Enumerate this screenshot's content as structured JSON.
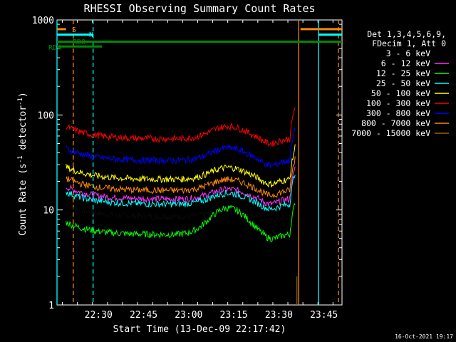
{
  "chart_data": {
    "type": "line",
    "title": "RHESSI Observing Summary Count Rates",
    "xlabel": "Start Time (13-Dec-09 22:17:42)",
    "ylabel_main": "Count Rate (s",
    "ylabel_sup1": "-1",
    "ylabel_mid": " detector",
    "ylabel_sup2": "-1",
    "ylabel_end": ")",
    "yscale": "log",
    "ylim": [
      1,
      1000
    ],
    "xlim_minutes": [
      22.27,
      23.85
    ],
    "x_ticks": [
      {
        "value": 22.5,
        "label": "22:30"
      },
      {
        "value": 22.75,
        "label": "22:45"
      },
      {
        "value": 23.0,
        "label": "23:00"
      },
      {
        "value": 23.25,
        "label": "23:15"
      },
      {
        "value": 23.5,
        "label": "23:30"
      },
      {
        "value": 23.75,
        "label": "23:45"
      }
    ],
    "y_ticks": [
      {
        "value": 1,
        "label": "1"
      },
      {
        "value": 10,
        "label": "10"
      },
      {
        "value": 100,
        "label": "100"
      },
      {
        "value": 1000,
        "label": "1000"
      }
    ],
    "legend": {
      "header": [
        "Det 1,3,4,5,6,9,",
        "FDecim 1, Att 0"
      ],
      "placement": "right"
    },
    "series": [
      {
        "name": "3 - 6 keV",
        "color": "#000000",
        "base": 8.5,
        "bump": 1.5
      },
      {
        "name": "6 - 12 keV",
        "color": "#ff33ff",
        "base": 13,
        "bump": 3.5
      },
      {
        "name": "12 - 25 keV",
        "color": "#00ff00",
        "base": 5.5,
        "bump": 5
      },
      {
        "name": "25 - 50 keV",
        "color": "#00ffff",
        "base": 11.5,
        "bump": 3.5
      },
      {
        "name": "50 - 100 keV",
        "color": "#ffff00",
        "base": 21,
        "bump": 7
      },
      {
        "name": "100 - 300 keV",
        "color": "#ff0000",
        "base": 56,
        "bump": 20
      },
      {
        "name": "300 - 800 keV",
        "color": "#0000ff",
        "base": 33,
        "bump": 12
      },
      {
        "name": "800 - 7000 keV",
        "color": "#ff8800",
        "base": 16,
        "bump": 5
      },
      {
        "name": "7000 - 15000 keV",
        "color": "#996600",
        "base": 0,
        "bump": 0
      }
    ],
    "flags": [
      {
        "label": "S",
        "color": "#ff8800",
        "x_start": 22.27,
        "x_end": 22.32,
        "x_start2": 23.62,
        "x_end2": 23.85,
        "level": 800
      },
      {
        "label": "N",
        "color": "#00ffff",
        "x_start": 22.27,
        "x_end": 22.47,
        "x_start2": 23.72,
        "x_end2": 23.85,
        "level": 700
      },
      {
        "label": "RD0",
        "color": "#008800",
        "x_start": 22.27,
        "x_end": 23.85,
        "level": 590
      },
      {
        "label": "RD4",
        "color": "#008800",
        "x_start": 22.27,
        "x_end": 22.52,
        "level": 525
      }
    ],
    "vlines": [
      {
        "x": 22.27,
        "color": "#00ffff",
        "style": "solid"
      },
      {
        "x": 22.36,
        "color": "#ff8800",
        "style": "dashed"
      },
      {
        "x": 22.47,
        "color": "#00ffff",
        "style": "dashed"
      },
      {
        "x": 23.61,
        "color": "#ff8800",
        "style": "solid"
      },
      {
        "x": 23.72,
        "color": "#00ffff",
        "style": "solid"
      },
      {
        "x": 23.83,
        "color": "#ff8800",
        "style": "dashed"
      }
    ],
    "data_x_range": [
      22.32,
      23.59
    ]
  },
  "timestamp": "16-Oct-2021 19:17"
}
